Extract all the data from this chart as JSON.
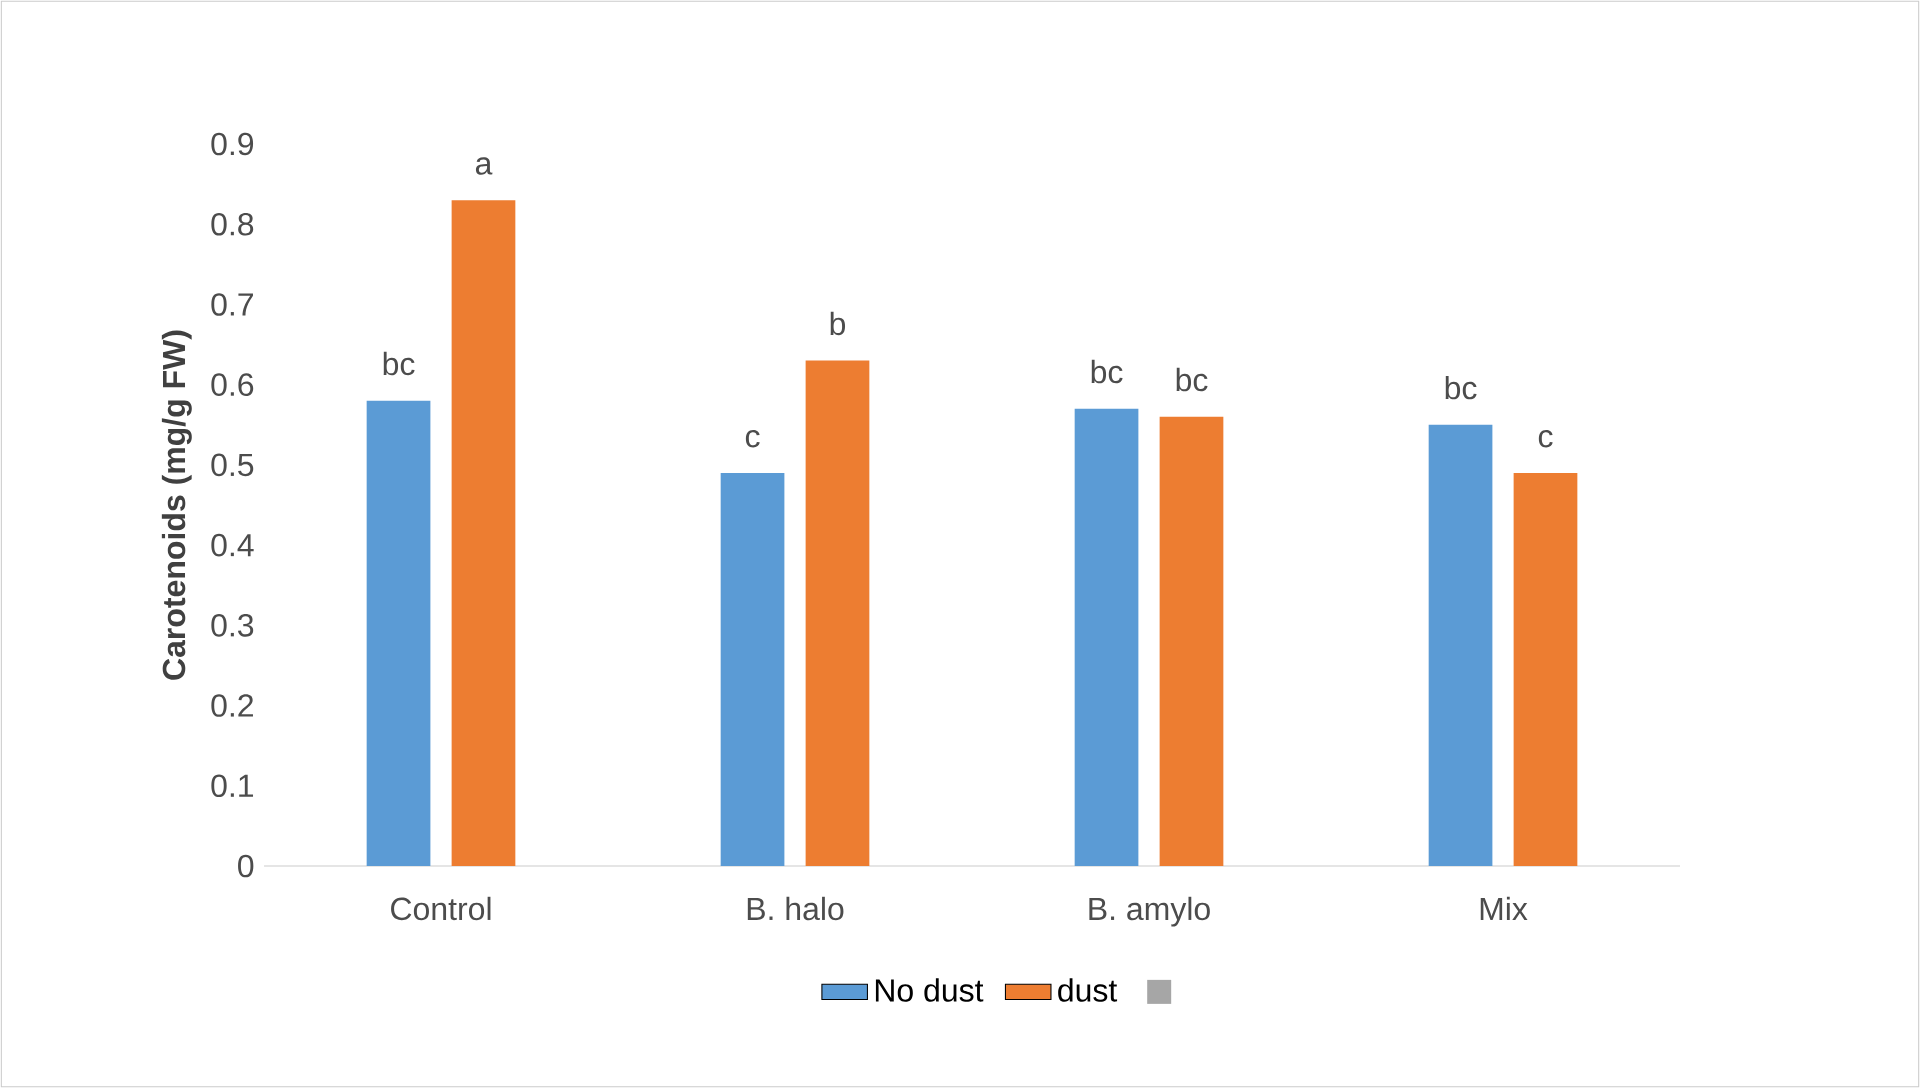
{
  "chart_data": {
    "type": "bar",
    "ylabel": "Carotenoids (mg/g FW)",
    "categories": [
      "Control",
      "B. halo",
      "B. amylo",
      "Mix"
    ],
    "series": [
      {
        "name": "No dust",
        "color": "#5b9bd5",
        "values": [
          0.58,
          0.49,
          0.57,
          0.55
        ]
      },
      {
        "name": "dust",
        "color": "#ed7d31",
        "values": [
          0.83,
          0.63,
          0.56,
          0.49
        ]
      }
    ],
    "ylim": [
      0,
      0.9
    ],
    "yticks": [
      0,
      0.1,
      0.2,
      0.3,
      0.4,
      0.5,
      0.6,
      0.7,
      0.8,
      0.9
    ],
    "grid": false,
    "legend": "bottom",
    "annotations": [
      "bc",
      "a",
      "c",
      "b",
      "bc",
      "bc",
      "bc",
      "c"
    ]
  }
}
